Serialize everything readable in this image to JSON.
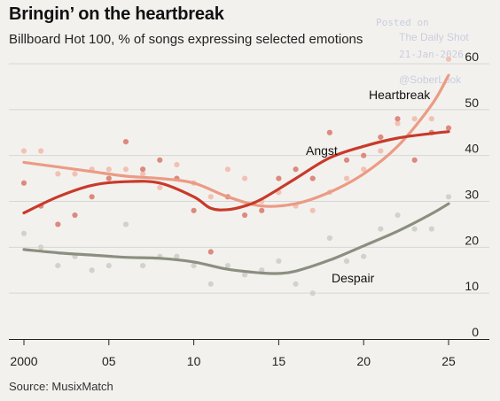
{
  "header": {
    "title": "Bringin’ on the heartbreak",
    "subtitle": "Billboard Hot 100, % of songs expressing selected emotions"
  },
  "footer": {
    "source": "Source: MusixMatch"
  },
  "watermark": {
    "line1": "Posted on",
    "line2": "The Daily Shot",
    "line3": "21-Jan-2026",
    "line4": "@SoberLook"
  },
  "colors": {
    "background": "#f3f1ee",
    "heartbreak": "#eb9b84",
    "angst": "#c83a2a",
    "despair": "#8b8f80",
    "heartbreak_dots": "#f1c2b4",
    "angst_dots": "#dc8a7d",
    "despair_dots": "#d2d2cd",
    "grid": "#d6d6d6"
  },
  "chart_data": {
    "type": "line",
    "title": "Bringin’ on the heartbreak",
    "subtitle": "Billboard Hot 100, % of songs expressing selected emotions",
    "xlim": [
      1999.5,
      2026.5
    ],
    "ylim": [
      0,
      60
    ],
    "x_ticks": [
      2000,
      2005,
      2010,
      2015,
      2020,
      2025
    ],
    "x_tick_labels": [
      "2000",
      "05",
      "10",
      "15",
      "20",
      "25"
    ],
    "y_ticks": [
      0,
      10,
      20,
      30,
      40,
      50,
      60
    ],
    "grid": "horizontal",
    "series": [
      {
        "name": "Heartbreak",
        "color_key": "heartbreak",
        "trend": [
          [
            2000,
            38.5
          ],
          [
            2002,
            37.5
          ],
          [
            2004,
            36.5
          ],
          [
            2006,
            35.5
          ],
          [
            2008,
            35
          ],
          [
            2010,
            34
          ],
          [
            2012,
            31
          ],
          [
            2014,
            29
          ],
          [
            2016,
            29.5
          ],
          [
            2018,
            32
          ],
          [
            2020,
            36
          ],
          [
            2022,
            42
          ],
          [
            2024,
            51
          ],
          [
            2025,
            57.5
          ]
        ],
        "points": [
          [
            2000,
            41
          ],
          [
            2001,
            41
          ],
          [
            2002,
            36
          ],
          [
            2003,
            36
          ],
          [
            2004,
            37
          ],
          [
            2005,
            37
          ],
          [
            2006,
            37
          ],
          [
            2007,
            36
          ],
          [
            2008,
            33
          ],
          [
            2009,
            38
          ],
          [
            2010,
            34
          ],
          [
            2011,
            31
          ],
          [
            2012,
            37
          ],
          [
            2013,
            35
          ],
          [
            2014,
            30
          ],
          [
            2015,
            32
          ],
          [
            2016,
            29
          ],
          [
            2017,
            28
          ],
          [
            2018,
            32
          ],
          [
            2019,
            35
          ],
          [
            2020,
            37
          ],
          [
            2021,
            41
          ],
          [
            2022,
            47
          ],
          [
            2023,
            48
          ],
          [
            2024,
            48
          ],
          [
            2025,
            61
          ]
        ]
      },
      {
        "name": "Angst",
        "color_key": "angst",
        "trend": [
          [
            2000,
            27.5
          ],
          [
            2002,
            31
          ],
          [
            2004,
            33.5
          ],
          [
            2006,
            34.3
          ],
          [
            2008,
            34
          ],
          [
            2010,
            31
          ],
          [
            2011,
            28.5
          ],
          [
            2012,
            28.2
          ],
          [
            2013,
            29
          ],
          [
            2014,
            30.5
          ],
          [
            2016,
            35
          ],
          [
            2018,
            39.5
          ],
          [
            2020,
            42
          ],
          [
            2022,
            43.8
          ],
          [
            2024,
            44.8
          ],
          [
            2025,
            45.2
          ]
        ],
        "points": [
          [
            2000,
            34
          ],
          [
            2001,
            29
          ],
          [
            2002,
            25
          ],
          [
            2003,
            27
          ],
          [
            2004,
            31
          ],
          [
            2005,
            35
          ],
          [
            2006,
            43
          ],
          [
            2007,
            37
          ],
          [
            2008,
            39
          ],
          [
            2009,
            35
          ],
          [
            2010,
            28
          ],
          [
            2011,
            19
          ],
          [
            2012,
            31
          ],
          [
            2013,
            27
          ],
          [
            2014,
            28
          ],
          [
            2015,
            35
          ],
          [
            2016,
            37
          ],
          [
            2017,
            35
          ],
          [
            2018,
            45
          ],
          [
            2019,
            39
          ],
          [
            2020,
            40
          ],
          [
            2021,
            44
          ],
          [
            2022,
            48
          ],
          [
            2023,
            39
          ],
          [
            2024,
            45
          ],
          [
            2025,
            46
          ]
        ]
      },
      {
        "name": "Despair",
        "color_key": "despair",
        "trend": [
          [
            2000,
            19.5
          ],
          [
            2002,
            18.8
          ],
          [
            2004,
            18.3
          ],
          [
            2006,
            17.8
          ],
          [
            2008,
            17.6
          ],
          [
            2010,
            16.8
          ],
          [
            2012,
            15.2
          ],
          [
            2014,
            14.4
          ],
          [
            2015,
            14.3
          ],
          [
            2016,
            14.8
          ],
          [
            2018,
            17.2
          ],
          [
            2020,
            20.3
          ],
          [
            2022,
            23.5
          ],
          [
            2024,
            27.3
          ],
          [
            2025,
            29.5
          ]
        ],
        "points": [
          [
            2000,
            23
          ],
          [
            2001,
            20
          ],
          [
            2002,
            16
          ],
          [
            2003,
            18
          ],
          [
            2004,
            15
          ],
          [
            2005,
            16
          ],
          [
            2006,
            25
          ],
          [
            2007,
            16
          ],
          [
            2008,
            18
          ],
          [
            2009,
            18
          ],
          [
            2010,
            16
          ],
          [
            2011,
            12
          ],
          [
            2012,
            16
          ],
          [
            2013,
            14
          ],
          [
            2014,
            15
          ],
          [
            2015,
            17
          ],
          [
            2016,
            12
          ],
          [
            2017,
            10
          ],
          [
            2018,
            22
          ],
          [
            2019,
            17
          ],
          [
            2020,
            18
          ],
          [
            2021,
            24
          ],
          [
            2022,
            27
          ],
          [
            2023,
            24
          ],
          [
            2024,
            24
          ],
          [
            2025,
            31
          ]
        ]
      }
    ],
    "annotations": [
      {
        "text": "Heartbreak",
        "series": "Heartbreak"
      },
      {
        "text": "Angst",
        "series": "Angst"
      },
      {
        "text": "Despair",
        "series": "Despair"
      }
    ]
  }
}
